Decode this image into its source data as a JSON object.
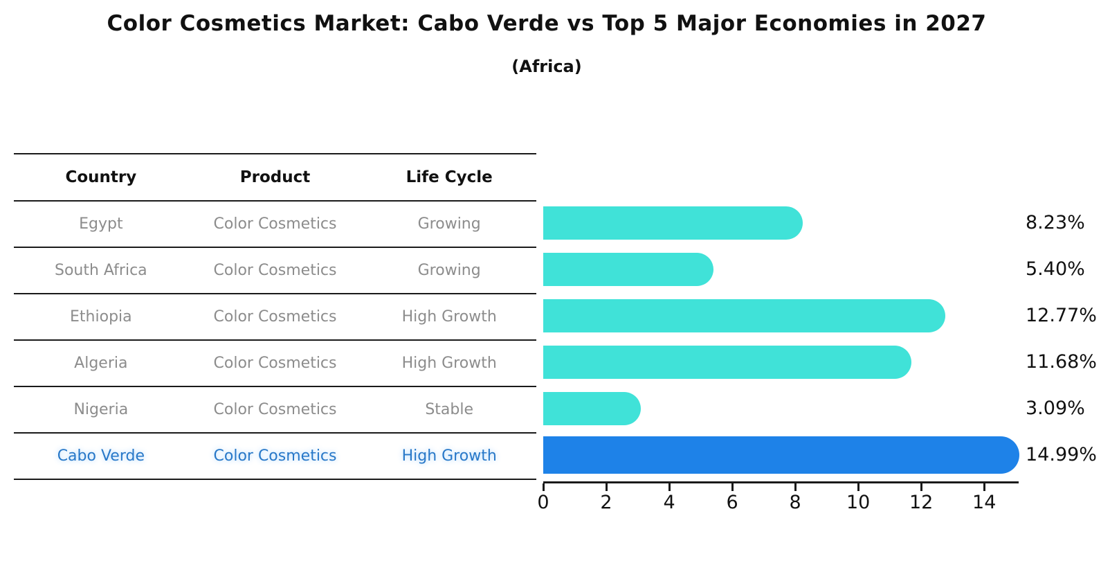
{
  "title": "Color Cosmetics Market: Cabo Verde vs Top 5 Major Economies in 2027",
  "subtitle": "(Africa)",
  "table": {
    "headers": [
      "Country",
      "Product",
      "Life Cycle"
    ],
    "rows": [
      {
        "country": "Egypt",
        "product": "Color Cosmetics",
        "life_cycle": "Growing",
        "highlight": false
      },
      {
        "country": "South Africa",
        "product": "Color Cosmetics",
        "life_cycle": "Growing",
        "highlight": false
      },
      {
        "country": "Ethiopia",
        "product": "Color Cosmetics",
        "life_cycle": "High Growth",
        "highlight": false
      },
      {
        "country": "Algeria",
        "product": "Color Cosmetics",
        "life_cycle": "High Growth",
        "highlight": false
      },
      {
        "country": "Nigeria",
        "product": "Color Cosmetics",
        "life_cycle": "Stable",
        "highlight": false
      },
      {
        "country": "Cabo Verde",
        "product": "Color Cosmetics",
        "life_cycle": "High Growth",
        "highlight": true
      }
    ]
  },
  "chart_data": {
    "type": "bar",
    "orientation": "horizontal",
    "title": "Color Cosmetics Market: Cabo Verde vs Top 5 Major Economies in 2027",
    "subtitle": "(Africa)",
    "categories": [
      "Egypt",
      "South Africa",
      "Ethiopia",
      "Algeria",
      "Nigeria",
      "Cabo Verde"
    ],
    "values": [
      8.23,
      5.4,
      12.77,
      11.68,
      3.09,
      14.99
    ],
    "value_labels": [
      "8.23%",
      "5.40%",
      "12.77%",
      "11.68%",
      "3.09%",
      "14.99%"
    ],
    "unit": "%",
    "xticks": [
      0,
      2,
      4,
      6,
      8,
      10,
      12,
      14
    ],
    "xlim": [
      0,
      15.05
    ],
    "grid": false,
    "legend": false,
    "highlight_index": 5
  },
  "theme": {
    "bar_color": "#40E2D8",
    "highlight_bar_color": "#1E82E8",
    "highlight_text_color": "#2878c8",
    "text_color": "#111111",
    "muted_text_color": "#8c8c8c",
    "line_color": "#1a1a1a",
    "background": "#ffffff"
  }
}
